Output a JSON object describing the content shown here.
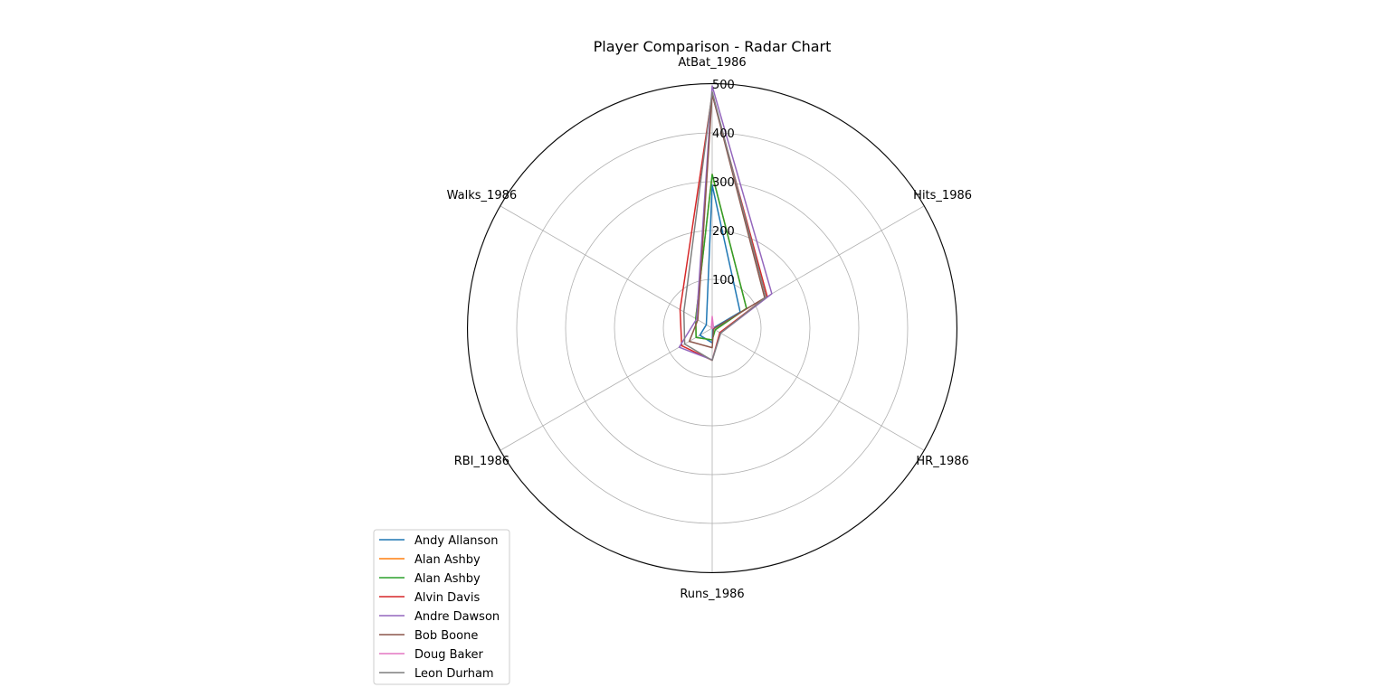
{
  "chart_data": {
    "type": "radar",
    "title": "Player Comparison - Radar Chart",
    "axes": [
      "AtBat_1986",
      "Hits_1986",
      "HR_1986",
      "Runs_1986",
      "RBI_1986",
      "Walks_1986"
    ],
    "rlim": [
      0,
      500
    ],
    "rticks": [
      "100",
      "200",
      "300",
      "400",
      "500"
    ],
    "rtick_values": [
      100,
      200,
      300,
      400,
      500
    ],
    "grid": true,
    "legend_position": "lower-left",
    "series": [
      {
        "name": "Andy Allanson",
        "color": "#1f77b4",
        "values": [
          293,
          66,
          1,
          30,
          29,
          14
        ]
      },
      {
        "name": "Alan Ashby",
        "color": "#ff7f0e",
        "values": [
          315,
          81,
          7,
          24,
          38,
          39
        ]
      },
      {
        "name": "Alan Ashby",
        "color": "#2ca02c",
        "values": [
          315,
          81,
          7,
          24,
          38,
          39
        ]
      },
      {
        "name": "Alvin Davis",
        "color": "#d62728",
        "values": [
          479,
          130,
          18,
          66,
          72,
          76
        ]
      },
      {
        "name": "Andre Dawson",
        "color": "#9467bd",
        "values": [
          496,
          141,
          20,
          65,
          78,
          37
        ]
      },
      {
        "name": "Bob Boone",
        "color": "#8c564b",
        "values": [
          480,
          124,
          3,
          40,
          54,
          34
        ]
      },
      {
        "name": "Doug Baker",
        "color": "#e377c2",
        "values": [
          24,
          3,
          0,
          1,
          0,
          2
        ]
      },
      {
        "name": "Leon Durham",
        "color": "#7f7f7f",
        "values": [
          484,
          127,
          20,
          66,
          65,
          67
        ]
      }
    ]
  }
}
